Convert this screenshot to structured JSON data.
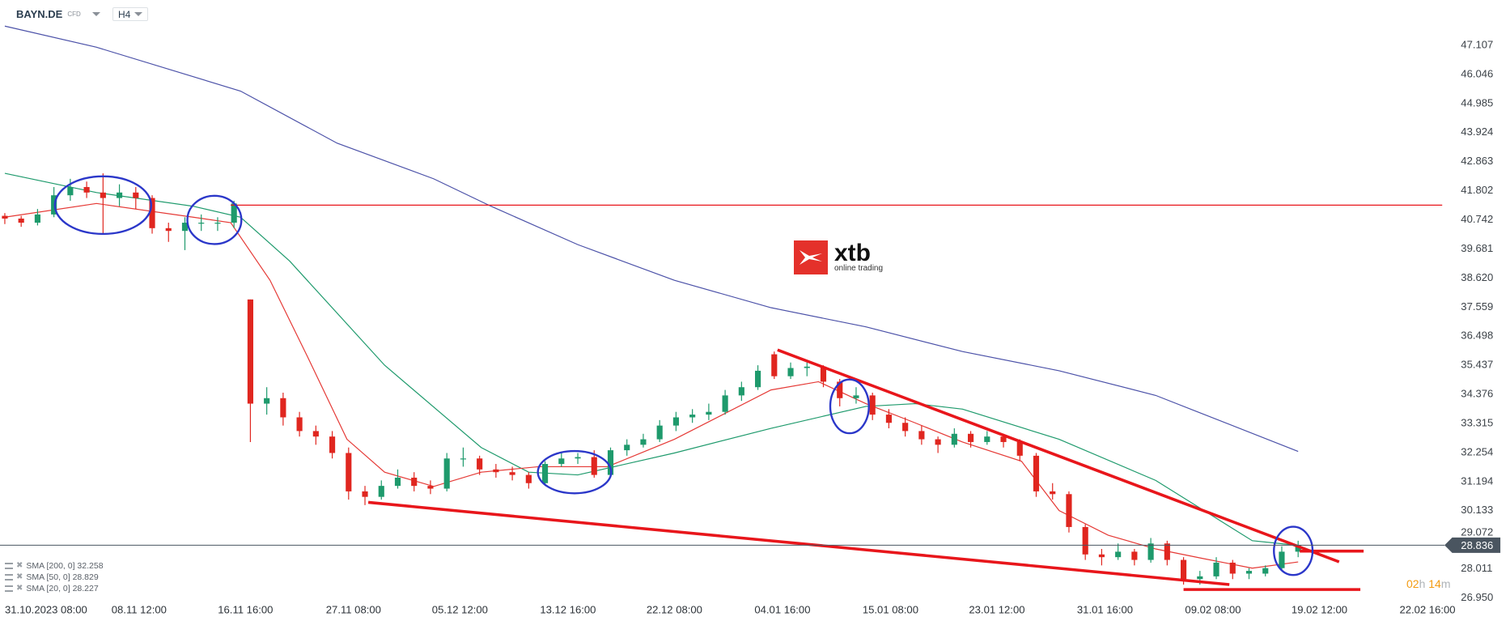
{
  "header": {
    "symbol": "BAYN.DE",
    "instrument_type": "CFD",
    "timeframe": "H4"
  },
  "logo": {
    "text": "xtb",
    "tagline": "online trading",
    "color": "#e4312b"
  },
  "timer": {
    "hours": "02",
    "h": "h",
    "minutes": "14",
    "m": "m"
  },
  "legend": [
    {
      "label": "SMA [200, 0] 32.258"
    },
    {
      "label": "SMA [50, 0] 28.829"
    },
    {
      "label": "SMA [20, 0] 28.227"
    }
  ],
  "chart_data": {
    "type": "candlestick",
    "colors": {
      "up": "#1e9a6c",
      "down": "#e0261f",
      "sma200": "#4b51a8",
      "sma50": "#1e9a6c",
      "sma20": "#e53935",
      "drawings": "#e8161b",
      "ellipses": "#2b37c9",
      "price_badge": "#4a5560"
    },
    "y_ticks": [
      "47.107",
      "46.046",
      "44.985",
      "43.924",
      "42.863",
      "41.802",
      "40.742",
      "39.681",
      "38.620",
      "37.559",
      "36.498",
      "35.437",
      "34.376",
      "33.315",
      "32.254",
      "31.194",
      "30.133",
      "29.072",
      "28.011",
      "26.950"
    ],
    "ylim": [
      26.95,
      47.107
    ],
    "current_price": "28.836",
    "x_ticks": [
      {
        "i": 0,
        "label": "31.10.2023  08:00"
      },
      {
        "i": 8.2,
        "label": "08.11  12:00"
      },
      {
        "i": 14.7,
        "label": "16.11  16:00"
      },
      {
        "i": 21.3,
        "label": "27.11  08:00"
      },
      {
        "i": 27.8,
        "label": "05.12  12:00"
      },
      {
        "i": 34.4,
        "label": "13.12  16:00"
      },
      {
        "i": 40.9,
        "label": "22.12  08:00"
      },
      {
        "i": 47.5,
        "label": "04.01  16:00"
      },
      {
        "i": 54.1,
        "label": "15.01  08:00"
      },
      {
        "i": 60.6,
        "label": "23.01  12:00"
      },
      {
        "i": 67.2,
        "label": "31.01  16:00"
      },
      {
        "i": 73.8,
        "label": "09.02  08:00"
      },
      {
        "i": 80.3,
        "label": "19.02  12:00"
      },
      {
        "i": 86.9,
        "label": "22.02  16:00"
      }
    ],
    "candles_ohlc": [
      [
        40.85,
        40.95,
        40.55,
        40.75
      ],
      [
        40.75,
        40.85,
        40.45,
        40.6
      ],
      [
        40.6,
        41.1,
        40.5,
        40.9
      ],
      [
        40.9,
        41.9,
        40.8,
        41.6
      ],
      [
        41.6,
        42.2,
        41.4,
        41.9
      ],
      [
        41.9,
        42.1,
        41.5,
        41.7
      ],
      [
        41.7,
        42.4,
        40.2,
        41.5
      ],
      [
        41.5,
        42.0,
        41.2,
        41.7
      ],
      [
        41.7,
        41.9,
        41.1,
        41.5
      ],
      [
        41.5,
        41.6,
        40.2,
        40.4
      ],
      [
        40.4,
        40.6,
        39.9,
        40.3
      ],
      [
        40.3,
        40.8,
        39.6,
        40.6
      ],
      [
        40.6,
        40.9,
        40.3,
        40.6
      ],
      [
        40.6,
        40.8,
        40.3,
        40.6
      ],
      [
        40.6,
        41.4,
        40.4,
        41.3
      ],
      [
        37.8,
        37.8,
        32.6,
        34.0
      ],
      [
        34.0,
        34.6,
        33.6,
        34.2
      ],
      [
        34.2,
        34.4,
        33.2,
        33.5
      ],
      [
        33.5,
        33.7,
        32.8,
        33.0
      ],
      [
        33.0,
        33.2,
        32.5,
        32.8
      ],
      [
        32.8,
        33.0,
        32.0,
        32.2
      ],
      [
        32.2,
        32.4,
        30.5,
        30.8
      ],
      [
        30.8,
        31.0,
        30.3,
        30.6
      ],
      [
        30.6,
        31.2,
        30.5,
        31.0
      ],
      [
        31.0,
        31.6,
        30.9,
        31.3
      ],
      [
        31.3,
        31.5,
        30.8,
        31.0
      ],
      [
        31.0,
        31.2,
        30.7,
        30.9
      ],
      [
        30.9,
        32.2,
        30.8,
        32.0
      ],
      [
        32.0,
        32.4,
        31.7,
        32.0
      ],
      [
        32.0,
        32.1,
        31.4,
        31.6
      ],
      [
        31.6,
        31.8,
        31.3,
        31.5
      ],
      [
        31.5,
        31.7,
        31.2,
        31.4
      ],
      [
        31.4,
        31.5,
        30.9,
        31.1
      ],
      [
        31.1,
        31.9,
        31.0,
        31.8
      ],
      [
        31.8,
        32.2,
        31.7,
        32.0
      ],
      [
        32.0,
        32.2,
        31.8,
        32.05
      ],
      [
        32.05,
        32.3,
        31.3,
        31.4
      ],
      [
        31.4,
        32.4,
        31.3,
        32.3
      ],
      [
        32.3,
        32.7,
        32.1,
        32.5
      ],
      [
        32.5,
        32.9,
        32.4,
        32.7
      ],
      [
        32.7,
        33.4,
        32.6,
        33.2
      ],
      [
        33.2,
        33.7,
        33.0,
        33.5
      ],
      [
        33.5,
        33.8,
        33.3,
        33.6
      ],
      [
        33.6,
        34.0,
        33.4,
        33.7
      ],
      [
        33.7,
        34.5,
        33.6,
        34.3
      ],
      [
        34.3,
        34.8,
        34.1,
        34.6
      ],
      [
        34.6,
        35.4,
        34.5,
        35.2
      ],
      [
        35.8,
        35.9,
        34.9,
        35.0
      ],
      [
        35.0,
        35.5,
        34.9,
        35.3
      ],
      [
        35.3,
        35.5,
        35.0,
        35.35
      ],
      [
        35.35,
        35.4,
        34.6,
        34.8
      ],
      [
        34.8,
        34.9,
        33.9,
        34.2
      ],
      [
        34.2,
        34.6,
        34.0,
        34.3
      ],
      [
        34.3,
        34.4,
        33.4,
        33.6
      ],
      [
        33.6,
        33.8,
        33.1,
        33.3
      ],
      [
        33.3,
        33.5,
        32.8,
        33.0
      ],
      [
        33.0,
        33.2,
        32.5,
        32.7
      ],
      [
        32.7,
        32.8,
        32.2,
        32.5
      ],
      [
        32.5,
        33.1,
        32.4,
        32.9
      ],
      [
        32.9,
        33.0,
        32.4,
        32.6
      ],
      [
        32.6,
        33.0,
        32.5,
        32.8
      ],
      [
        32.8,
        32.9,
        32.4,
        32.6
      ],
      [
        32.6,
        32.7,
        31.9,
        32.1
      ],
      [
        32.1,
        32.2,
        30.6,
        30.8
      ],
      [
        30.8,
        31.1,
        30.5,
        30.7
      ],
      [
        30.7,
        30.8,
        29.3,
        29.5
      ],
      [
        29.5,
        29.6,
        28.3,
        28.5
      ],
      [
        28.5,
        28.7,
        28.1,
        28.4
      ],
      [
        28.4,
        28.9,
        28.3,
        28.6
      ],
      [
        28.6,
        28.7,
        28.1,
        28.3
      ],
      [
        28.3,
        29.1,
        28.2,
        28.9
      ],
      [
        28.9,
        29.0,
        28.1,
        28.3
      ],
      [
        28.3,
        28.4,
        27.4,
        27.6
      ],
      [
        27.6,
        27.9,
        27.4,
        27.7
      ],
      [
        27.7,
        28.4,
        27.6,
        28.2
      ],
      [
        28.2,
        28.3,
        27.6,
        27.8
      ],
      [
        27.8,
        28.0,
        27.6,
        27.9
      ],
      [
        27.8,
        28.1,
        27.7,
        28.0
      ],
      [
        28.0,
        28.8,
        27.9,
        28.6
      ],
      [
        28.6,
        29.0,
        28.4,
        28.836
      ]
    ],
    "series": [
      {
        "name": "SMA [200, 0]",
        "key": "sma200",
        "points": [
          [
            0,
            47.77
          ],
          [
            5.6,
            47.0
          ],
          [
            14.4,
            45.4
          ],
          [
            20.3,
            43.5
          ],
          [
            26.2,
            42.2
          ],
          [
            29.7,
            41.2
          ],
          [
            35,
            39.8
          ],
          [
            40.9,
            38.5
          ],
          [
            46.8,
            37.5
          ],
          [
            52.6,
            36.8
          ],
          [
            58.5,
            35.9
          ],
          [
            64.4,
            35.2
          ],
          [
            70.3,
            34.3
          ],
          [
            79,
            32.258
          ]
        ]
      },
      {
        "name": "SMA [50, 0]",
        "key": "sma50",
        "points": [
          [
            0,
            42.4
          ],
          [
            5.6,
            41.7
          ],
          [
            11.5,
            41.2
          ],
          [
            14.4,
            40.8
          ],
          [
            17.4,
            39.2
          ],
          [
            23.2,
            35.4
          ],
          [
            29.1,
            32.4
          ],
          [
            32,
            31.5
          ],
          [
            35,
            31.4
          ],
          [
            40.9,
            32.2
          ],
          [
            46.8,
            33.1
          ],
          [
            52.6,
            33.9
          ],
          [
            55.6,
            34.0
          ],
          [
            58.5,
            33.8
          ],
          [
            64.4,
            32.7
          ],
          [
            70.3,
            31.2
          ],
          [
            76.2,
            29.0
          ],
          [
            79,
            28.829
          ]
        ]
      },
      {
        "name": "SMA [20, 0]",
        "key": "sma20",
        "points": [
          [
            0,
            40.8
          ],
          [
            5.6,
            41.3
          ],
          [
            11.5,
            40.8
          ],
          [
            13.8,
            40.6
          ],
          [
            16.2,
            38.5
          ],
          [
            18.5,
            35.7
          ],
          [
            20.9,
            32.7
          ],
          [
            23.2,
            31.5
          ],
          [
            26.2,
            30.98
          ],
          [
            29.1,
            31.5
          ],
          [
            32.6,
            31.7
          ],
          [
            36.8,
            31.7
          ],
          [
            40.9,
            32.7
          ],
          [
            46.8,
            34.5
          ],
          [
            49.7,
            34.8
          ],
          [
            52.6,
            34.0
          ],
          [
            55.6,
            33.3
          ],
          [
            58.5,
            32.6
          ],
          [
            62.1,
            31.9
          ],
          [
            64.4,
            30.1
          ],
          [
            67.4,
            29.2
          ],
          [
            70.3,
            28.7
          ],
          [
            73.2,
            28.35
          ],
          [
            76.2,
            28.0
          ],
          [
            79,
            28.227
          ]
        ]
      }
    ],
    "drawings": {
      "lines": [
        {
          "name": "resistance-horizontal-line",
          "from": [
            13.8,
            41.24
          ],
          "to": [
            87.8,
            41.24
          ],
          "thick": false
        },
        {
          "name": "upper-trendline",
          "from": [
            47.2,
            35.96
          ],
          "to": [
            81.5,
            28.23
          ],
          "thick": true
        },
        {
          "name": "lower-trendline",
          "from": [
            22.2,
            30.4
          ],
          "to": [
            74.8,
            27.4
          ],
          "thick": true
        },
        {
          "name": "support-horizontal-line",
          "from": [
            72,
            27.22
          ],
          "to": [
            82.8,
            27.22
          ],
          "thick": true
        },
        {
          "name": "breakout-level-line",
          "from": [
            79.1,
            28.62
          ],
          "to": [
            83,
            28.62
          ],
          "thick": true
        }
      ],
      "ellipses": [
        [
          6,
          41.24,
          2.94,
          1.05
        ],
        [
          12.8,
          40.7,
          1.65,
          0.88
        ],
        [
          34.8,
          31.5,
          2.24,
          0.77
        ],
        [
          51.6,
          33.9,
          1.18,
          0.98
        ],
        [
          78.7,
          28.63,
          1.18,
          0.88
        ]
      ]
    }
  }
}
